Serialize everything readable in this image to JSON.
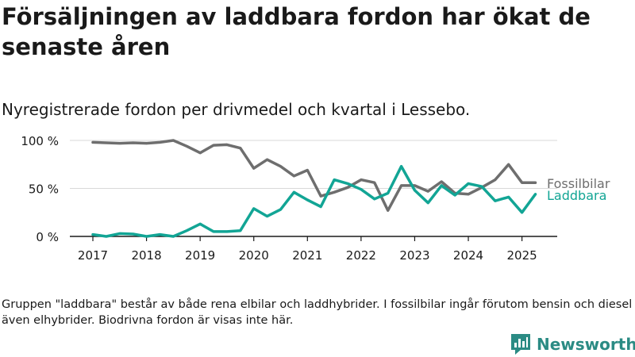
{
  "title": "Försäljningen av laddbara fordon har ökat de senaste åren",
  "subtitle": "Nyregistrerade fordon per drivmedel och kvartal i Lessebo.",
  "footnote": "Gruppen \"laddbara\" består av både rena elbilar och laddhybrider. I fossilbilar ingår förutom bensin och diesel även elhybrider. Biodrivna fordon är visas inte här.",
  "brand": {
    "name": "Newsworthy",
    "color": "#2b8b84",
    "icon": "newsworthy-chart-icon"
  },
  "chart_data": {
    "type": "line",
    "title": "Försäljningen av laddbara fordon har ökat de senaste åren",
    "subtitle": "Nyregistrerade fordon per drivmedel och kvartal i Lessebo.",
    "x_ticks": [
      "2017",
      "2018",
      "2019",
      "2020",
      "2021",
      "2022",
      "2023",
      "2024",
      "2025"
    ],
    "y_ticks": [
      "0 %",
      "50 %",
      "100 %"
    ],
    "y_tick_values": [
      0,
      50,
      100
    ],
    "ylim": [
      0,
      100
    ],
    "xlim": [
      "2017-Q1",
      "2025-Q2"
    ],
    "grid": true,
    "legend": "direct labels at right end of lines",
    "x": [
      "2017-Q1",
      "2017-Q2",
      "2017-Q3",
      "2017-Q4",
      "2018-Q1",
      "2018-Q2",
      "2018-Q3",
      "2018-Q4",
      "2019-Q1",
      "2019-Q2",
      "2019-Q3",
      "2019-Q4",
      "2020-Q1",
      "2020-Q2",
      "2020-Q3",
      "2020-Q4",
      "2021-Q1",
      "2021-Q2",
      "2021-Q3",
      "2021-Q4",
      "2022-Q1",
      "2022-Q2",
      "2022-Q3",
      "2022-Q4",
      "2023-Q1",
      "2023-Q2",
      "2023-Q3",
      "2023-Q4",
      "2024-Q1",
      "2024-Q2",
      "2024-Q3",
      "2024-Q4",
      "2025-Q1",
      "2025-Q2"
    ],
    "series": [
      {
        "name": "Fossilbilar",
        "color": "#6e6e6e",
        "values": [
          98,
          97.5,
          97,
          97.5,
          97,
          98,
          100,
          94,
          87,
          95,
          95.5,
          92,
          71,
          80,
          73,
          63,
          69,
          42,
          46,
          51,
          59,
          56,
          27,
          53,
          53,
          47,
          57,
          45,
          44,
          51,
          59,
          75,
          56,
          56
        ]
      },
      {
        "name": "Laddbara",
        "color": "#12a595",
        "values": [
          2,
          0,
          3,
          2.5,
          0,
          2,
          0,
          6,
          13,
          5,
          5,
          6,
          29,
          21,
          28,
          46,
          38,
          31,
          59,
          55,
          49,
          39,
          45,
          73,
          48,
          35,
          53,
          43,
          55,
          52,
          37,
          41,
          25,
          44
        ]
      }
    ]
  }
}
